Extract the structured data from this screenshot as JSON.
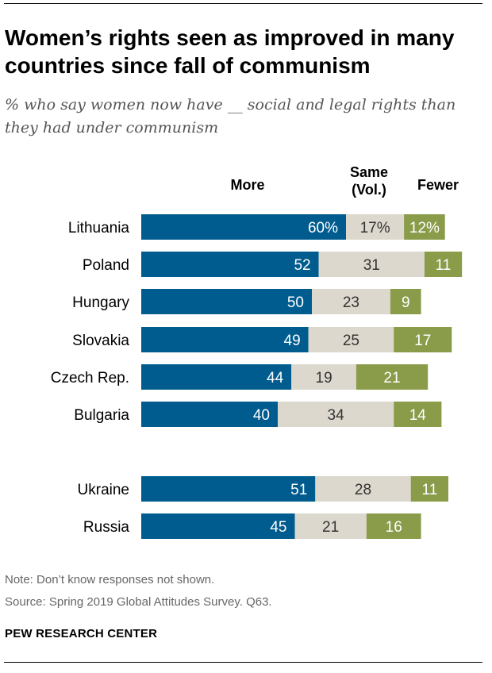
{
  "title": "Women’s rights seen as improved in many countries since fall of communism",
  "subtitle": "% who say women now have __ social and legal rights than they had under communism",
  "note": "Note: Don’t know responses not shown.",
  "source": "Source: Spring 2019 Global Attitudes Survey. Q63.",
  "brand": "PEW RESEARCH CENTER",
  "chart_data": {
    "type": "bar",
    "orientation": "horizontal",
    "stacked": true,
    "series_headers": [
      "More",
      "Same\n(Vol.)",
      "Fewer"
    ],
    "categories": [
      "Lithuania",
      "Poland",
      "Hungary",
      "Slovakia",
      "Czech Rep.",
      "Bulgaria",
      "Ukraine",
      "Russia"
    ],
    "groups": [
      [
        "Lithuania",
        "Poland",
        "Hungary",
        "Slovakia",
        "Czech Rep.",
        "Bulgaria"
      ],
      [
        "Ukraine",
        "Russia"
      ]
    ],
    "series": [
      {
        "name": "More",
        "values": [
          60,
          52,
          50,
          49,
          44,
          40,
          51,
          45
        ],
        "color": "#005c8f",
        "label_color": "#ffffff"
      },
      {
        "name": "Same (Vol.)",
        "values": [
          17,
          31,
          23,
          25,
          19,
          34,
          28,
          21
        ],
        "color": "#dcd8cd",
        "label_color": "#333333"
      },
      {
        "name": "Fewer",
        "values": [
          12,
          11,
          9,
          17,
          21,
          14,
          11,
          16
        ],
        "color": "#8a9c4a",
        "label_color": "#ffffff"
      }
    ],
    "data_labels": [
      [
        "60%",
        "52",
        "50",
        "49",
        "44",
        "40",
        "51",
        "45"
      ],
      [
        "17%",
        "31",
        "23",
        "25",
        "19",
        "34",
        "28",
        "21"
      ],
      [
        "12%",
        "11",
        "9",
        "17",
        "21",
        "14",
        "11",
        "16"
      ]
    ],
    "xlim": [
      0,
      100
    ],
    "grid": false,
    "legend": "column headers above bars"
  }
}
